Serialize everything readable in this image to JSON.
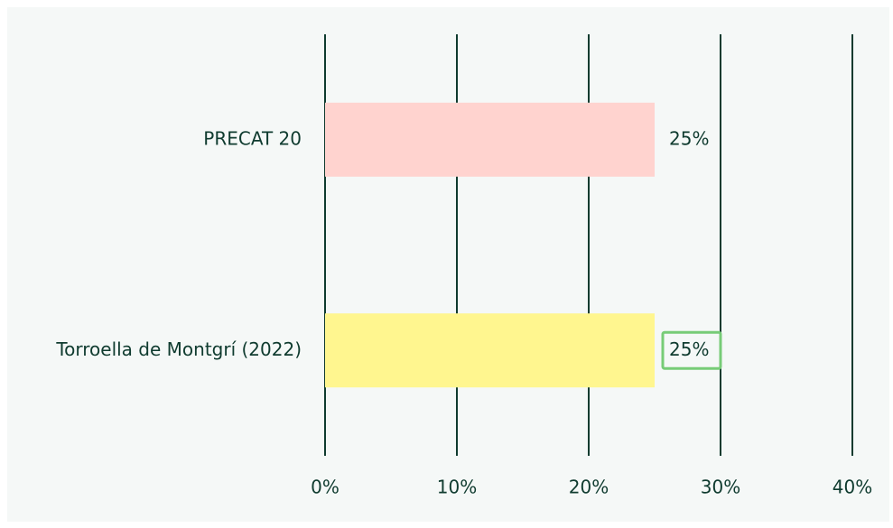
{
  "chart_data": {
    "type": "bar",
    "orientation": "horizontal",
    "categories": [
      "PRECAT 20",
      "Torroella de Montgrí (2022)"
    ],
    "values": [
      25,
      25
    ],
    "value_labels": [
      "25%",
      "25%"
    ],
    "colors": [
      "#ffd3cf",
      "#fff68f"
    ],
    "highlight_index": 1,
    "highlight_color": "#77cc77",
    "xlim": [
      0,
      40
    ],
    "xticks": [
      {
        "value": 0,
        "label": "0%"
      },
      {
        "value": 10,
        "label": "10%"
      },
      {
        "value": 20,
        "label": "20%"
      },
      {
        "value": 30,
        "label": "30%"
      },
      {
        "value": 40,
        "label": "40%"
      }
    ],
    "grid": true
  }
}
